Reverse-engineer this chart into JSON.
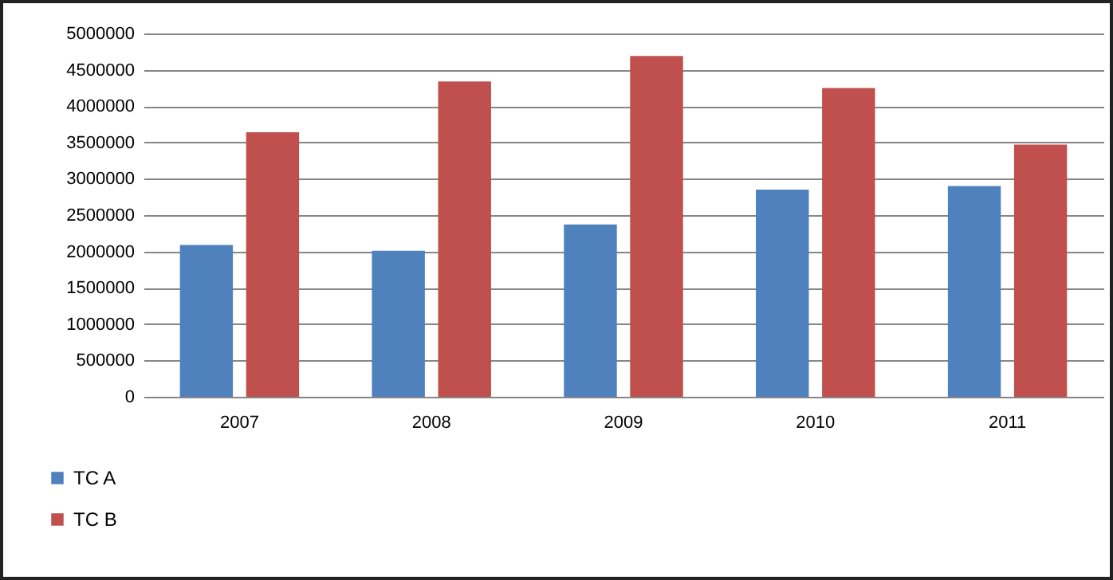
{
  "chart_data": {
    "type": "bar",
    "categories": [
      "2007",
      "2008",
      "2009",
      "2010",
      "2011"
    ],
    "series": [
      {
        "name": "TC A",
        "color": "#4f81bd",
        "values": [
          2090000,
          2010000,
          2370000,
          2850000,
          2900000
        ]
      },
      {
        "name": "TC B",
        "color": "#c0504d",
        "values": [
          3640000,
          4340000,
          4690000,
          4250000,
          3470000
        ]
      }
    ],
    "ylim": [
      0,
      5000000
    ],
    "yticks": [
      0,
      500000,
      1000000,
      1500000,
      2000000,
      2500000,
      3000000,
      3500000,
      4000000,
      4500000,
      5000000
    ],
    "grid": "y",
    "legend": "bottom left"
  }
}
